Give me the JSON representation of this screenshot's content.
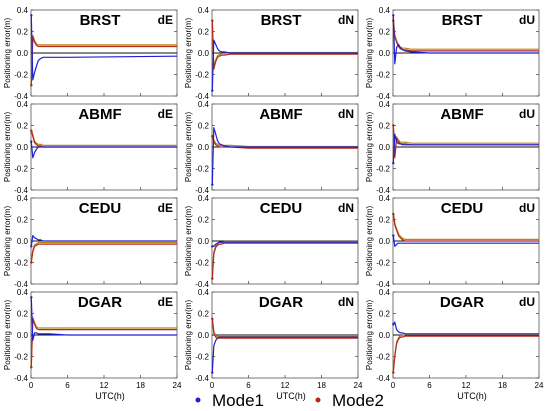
{
  "chart_data": {
    "type": "line",
    "x_range": [
      0,
      24
    ],
    "x_ticks": [
      "0",
      "6",
      "12",
      "18",
      "24"
    ],
    "ylim": [
      -0.4,
      0.4
    ],
    "y_ticks": [
      "0.4",
      "0.2",
      "0.0",
      "-0.2",
      "-0.4"
    ],
    "xlabel": "UTC(h)",
    "ylabel": "Positioning error(m)",
    "colors": {
      "mode1": "#1f1fd6",
      "mode2": "#b5261c",
      "extra": "#b08a12",
      "zero": "#111111"
    },
    "legend": [
      {
        "name": "Mode1",
        "color": "#1f1fd6"
      },
      {
        "name": "Mode2",
        "color": "#b5261c"
      }
    ],
    "rows": [
      {
        "station": "BRST",
        "panels": [
          {
            "component": "dE",
            "mode1": {
              "x": [
                0.05,
                0.3,
                0.6,
                0.9,
                1.2,
                1.6,
                2,
                3,
                6,
                24
              ],
              "y": [
                0.35,
                -0.25,
                -0.18,
                -0.12,
                -0.07,
                -0.05,
                -0.04,
                -0.04,
                -0.04,
                -0.03
              ]
            },
            "mode2": {
              "x": [
                0.05,
                0.3,
                0.6,
                0.9,
                1.2,
                1.6,
                2,
                3,
                6,
                24
              ],
              "y": [
                -0.3,
                0.15,
                0.1,
                0.07,
                0.06,
                0.06,
                0.06,
                0.06,
                0.06,
                0.06
              ]
            }
          },
          {
            "component": "dN",
            "mode1": {
              "x": [
                0.05,
                0.3,
                0.6,
                0.9,
                1.2,
                1.6,
                2,
                3,
                6,
                24
              ],
              "y": [
                -0.35,
                0.12,
                0.08,
                0.04,
                0.02,
                0.01,
                0.01,
                0.0,
                0.0,
                0.0
              ]
            },
            "mode2": {
              "x": [
                0.05,
                0.3,
                0.6,
                0.9,
                1.2,
                1.6,
                2,
                3,
                6,
                24
              ],
              "y": [
                0.3,
                -0.15,
                -0.08,
                -0.04,
                -0.03,
                -0.02,
                -0.02,
                -0.01,
                -0.01,
                -0.01
              ]
            }
          },
          {
            "component": "dU",
            "mode1": {
              "x": [
                0.05,
                0.3,
                0.6,
                0.9,
                1.2,
                1.6,
                2,
                3,
                6,
                24
              ],
              "y": [
                0.35,
                -0.1,
                0.05,
                0.08,
                0.05,
                0.03,
                0.02,
                0.01,
                0.0,
                0.0
              ]
            },
            "mode2": {
              "x": [
                0.05,
                0.3,
                0.6,
                0.9,
                1.2,
                1.6,
                2,
                3,
                6,
                24
              ],
              "y": [
                0.3,
                0.15,
                0.1,
                0.06,
                0.04,
                0.03,
                0.03,
                0.02,
                0.02,
                0.02
              ]
            }
          }
        ]
      },
      {
        "station": "ABMF",
        "panels": [
          {
            "component": "dE",
            "mode1": {
              "x": [
                0.05,
                0.3,
                0.6,
                0.9,
                1.2,
                1.6,
                2,
                3,
                6,
                24
              ],
              "y": [
                0.05,
                -0.1,
                -0.05,
                -0.02,
                0.0,
                0.0,
                0.0,
                0.0,
                0.0,
                0.0
              ]
            },
            "mode2": {
              "x": [
                0.05,
                0.3,
                0.6,
                0.9,
                1.2,
                1.6,
                2,
                3,
                6,
                24
              ],
              "y": [
                0.15,
                0.1,
                0.04,
                0.02,
                0.01,
                0.01,
                0.0,
                0.0,
                0.0,
                0.0
              ]
            }
          },
          {
            "component": "dN",
            "mode1": {
              "x": [
                0.05,
                0.3,
                0.6,
                0.9,
                1.2,
                1.6,
                2,
                3,
                6,
                24
              ],
              "y": [
                -0.35,
                0.18,
                0.12,
                0.06,
                0.03,
                0.02,
                0.01,
                0.0,
                0.0,
                0.0
              ]
            },
            "mode2": {
              "x": [
                0.05,
                0.3,
                0.6,
                0.9,
                1.2,
                1.6,
                2,
                3,
                6,
                24
              ],
              "y": [
                0.1,
                0.05,
                0.02,
                0.01,
                0.0,
                0.0,
                0.0,
                0.0,
                -0.01,
                -0.01
              ]
            }
          },
          {
            "component": "dU",
            "mode1": {
              "x": [
                0.05,
                0.3,
                0.6,
                0.9,
                1.2,
                1.6,
                2,
                3,
                6,
                24
              ],
              "y": [
                -0.15,
                0.12,
                0.05,
                0.03,
                0.03,
                0.02,
                0.02,
                0.02,
                0.02,
                0.02
              ]
            },
            "mode2": {
              "x": [
                0.05,
                0.3,
                0.6,
                0.9,
                1.2,
                1.6,
                2,
                3,
                6,
                24
              ],
              "y": [
                0.2,
                -0.1,
                0.08,
                0.05,
                0.03,
                0.03,
                0.03,
                0.02,
                0.02,
                0.02
              ]
            }
          }
        ]
      },
      {
        "station": "CEDU",
        "panels": [
          {
            "component": "dE",
            "mode1": {
              "x": [
                0.05,
                0.3,
                0.6,
                0.9,
                1.2,
                1.6,
                2,
                3,
                6,
                24
              ],
              "y": [
                -0.05,
                0.05,
                0.03,
                0.02,
                0.01,
                0.01,
                0.0,
                0.0,
                0.0,
                0.0
              ]
            },
            "mode2": {
              "x": [
                0.05,
                0.3,
                0.6,
                0.9,
                1.2,
                1.6,
                2,
                3,
                6,
                24
              ],
              "y": [
                -0.2,
                -0.1,
                -0.05,
                -0.04,
                -0.03,
                -0.03,
                -0.03,
                -0.03,
                -0.03,
                -0.03
              ]
            }
          },
          {
            "component": "dN",
            "mode1": {
              "x": [
                0.05,
                0.3,
                0.6,
                0.9,
                1.2,
                1.6,
                2,
                3,
                6,
                24
              ],
              "y": [
                -0.05,
                -0.05,
                -0.03,
                -0.02,
                -0.01,
                -0.01,
                -0.01,
                -0.01,
                -0.01,
                -0.01
              ]
            },
            "mode2": {
              "x": [
                0.05,
                0.3,
                0.6,
                0.9,
                1.2,
                1.6,
                2,
                3,
                6,
                24
              ],
              "y": [
                -0.35,
                -0.12,
                -0.06,
                -0.04,
                -0.03,
                -0.03,
                -0.02,
                -0.02,
                -0.02,
                -0.02
              ]
            }
          },
          {
            "component": "dU",
            "mode1": {
              "x": [
                0.05,
                0.3,
                0.6,
                0.9,
                1.2,
                1.6,
                2,
                3,
                6,
                24
              ],
              "y": [
                0.05,
                -0.05,
                -0.03,
                -0.02,
                -0.02,
                -0.02,
                -0.02,
                -0.02,
                -0.02,
                -0.02
              ]
            },
            "mode2": {
              "x": [
                0.05,
                0.3,
                0.6,
                0.9,
                1.2,
                1.6,
                2,
                3,
                6,
                24
              ],
              "y": [
                0.25,
                0.15,
                0.1,
                0.05,
                0.03,
                0.01,
                0.0,
                0.0,
                0.0,
                0.0
              ]
            }
          }
        ]
      },
      {
        "station": "DGAR",
        "panels": [
          {
            "component": "dE",
            "mode1": {
              "x": [
                0.05,
                0.3,
                0.6,
                0.9,
                1.2,
                1.6,
                2,
                3,
                6,
                24
              ],
              "y": [
                0.35,
                -0.05,
                0.02,
                0.02,
                0.01,
                0.01,
                0.01,
                0.01,
                0.0,
                0.0
              ]
            },
            "mode2": {
              "x": [
                0.05,
                0.3,
                0.6,
                0.9,
                1.2,
                1.6,
                2,
                3,
                6,
                24
              ],
              "y": [
                -0.3,
                0.15,
                0.1,
                0.06,
                0.05,
                0.05,
                0.05,
                0.05,
                0.05,
                0.05
              ]
            }
          },
          {
            "component": "dN",
            "mode1": {
              "x": [
                0.05,
                0.3,
                0.6,
                0.9,
                1.2,
                1.6,
                2,
                3,
                6,
                24
              ],
              "y": [
                -0.35,
                -0.1,
                -0.05,
                -0.03,
                -0.02,
                -0.02,
                -0.02,
                -0.02,
                -0.02,
                -0.02
              ]
            },
            "mode2": {
              "x": [
                0.05,
                0.3,
                0.6,
                0.9,
                1.2,
                1.6,
                2,
                3,
                6,
                24
              ],
              "y": [
                0.15,
                0.02,
                -0.02,
                -0.03,
                -0.03,
                -0.03,
                -0.03,
                -0.03,
                -0.03,
                -0.03
              ]
            }
          },
          {
            "component": "dU",
            "mode1": {
              "x": [
                0.05,
                0.3,
                0.6,
                0.9,
                1.2,
                1.6,
                2,
                3,
                6,
                24
              ],
              "y": [
                0.1,
                0.12,
                0.05,
                0.03,
                0.02,
                0.02,
                0.01,
                0.01,
                0.01,
                0.01
              ]
            },
            "mode2": {
              "x": [
                0.05,
                0.3,
                0.6,
                0.9,
                1.2,
                1.6,
                2,
                3,
                6,
                24
              ],
              "y": [
                -0.35,
                -0.2,
                -0.08,
                -0.04,
                -0.02,
                -0.02,
                -0.01,
                -0.01,
                -0.01,
                -0.01
              ]
            }
          }
        ]
      }
    ]
  }
}
